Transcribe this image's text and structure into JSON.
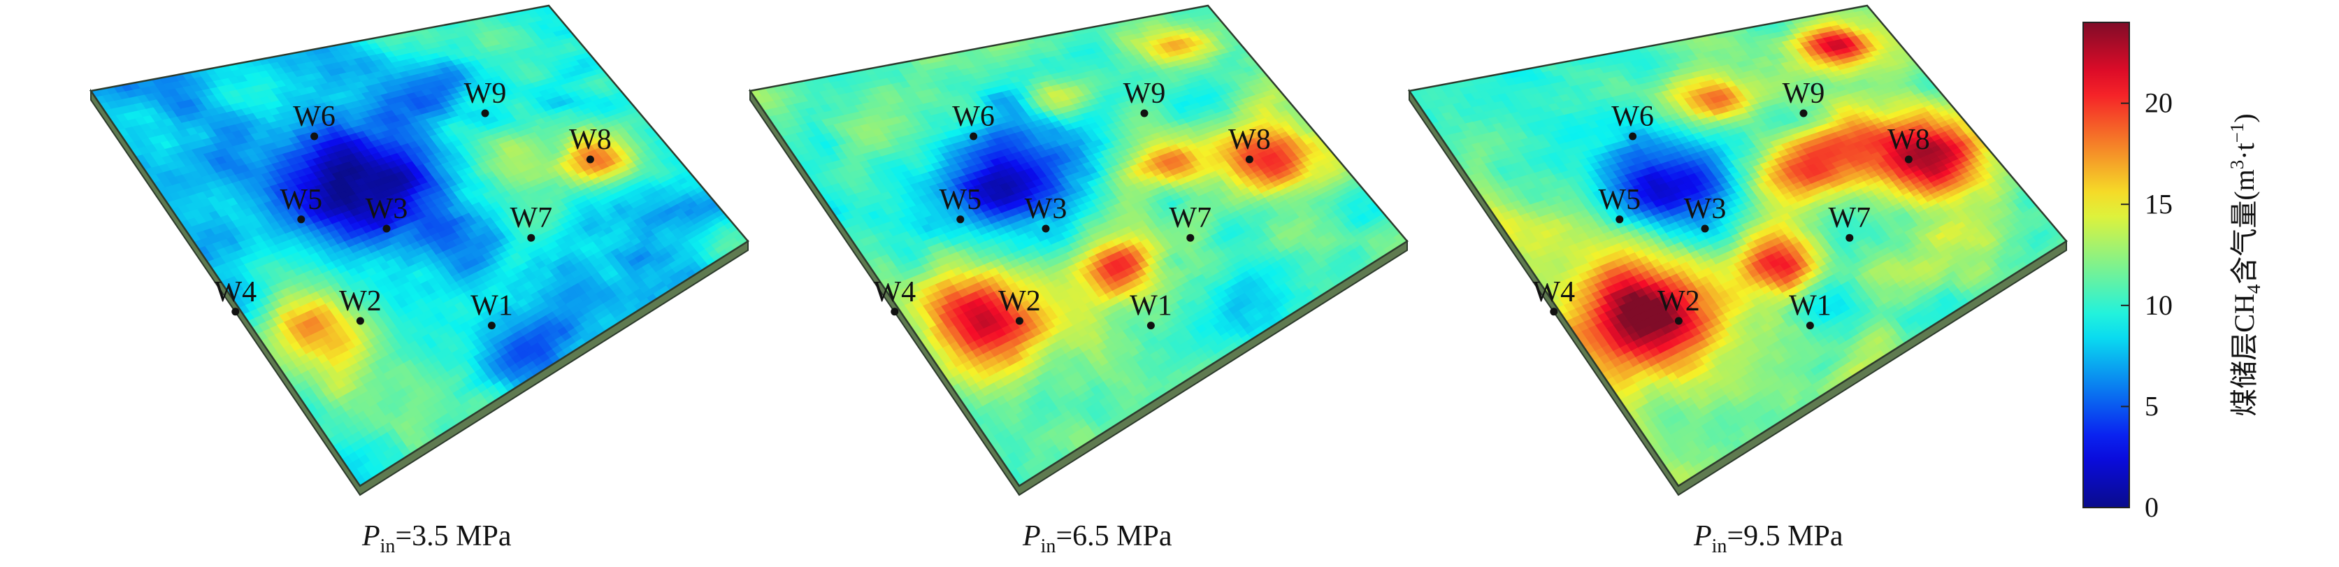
{
  "panels": [
    {
      "caption": {
        "symbol": "P",
        "subscript": "in",
        "value": "=3.5 MPa"
      },
      "wells": [
        {
          "label": "W6",
          "u": 0.34,
          "v": 0.25
        },
        {
          "label": "W9",
          "u": 0.6,
          "v": 0.2
        },
        {
          "label": "W8",
          "u": 0.76,
          "v": 0.3
        },
        {
          "label": "W5",
          "u": 0.32,
          "v": 0.43
        },
        {
          "label": "W3",
          "u": 0.45,
          "v": 0.45
        },
        {
          "label": "W7",
          "u": 0.67,
          "v": 0.47
        },
        {
          "label": "W4",
          "u": 0.22,
          "v": 0.63
        },
        {
          "label": "W2",
          "u": 0.41,
          "v": 0.65
        },
        {
          "label": "W1",
          "u": 0.61,
          "v": 0.66
        }
      ],
      "features": [
        {
          "u": 0.4,
          "v": 0.38,
          "su": 0.14,
          "sv": 0.12,
          "amp": -9
        },
        {
          "u": 0.12,
          "v": 0.66,
          "su": 0.07,
          "sv": 0.1,
          "amp": 6
        },
        {
          "u": 0.86,
          "v": 0.56,
          "su": 0.05,
          "sv": 0.07,
          "amp": 8
        },
        {
          "u": 0.48,
          "v": 0.9,
          "su": 0.09,
          "sv": 0.07,
          "amp": -5
        },
        {
          "u": 0.58,
          "v": 0.2,
          "su": 0.1,
          "sv": 0.07,
          "amp": -2
        },
        {
          "u": 0.7,
          "v": 0.46,
          "su": 0.06,
          "sv": 0.06,
          "amp": 3
        }
      ],
      "base_value": 9.5
    },
    {
      "caption": {
        "symbol": "P",
        "subscript": "in",
        "value": "=6.5 MPa"
      },
      "wells": [
        {
          "label": "W6",
          "u": 0.34,
          "v": 0.25
        },
        {
          "label": "W9",
          "u": 0.6,
          "v": 0.2
        },
        {
          "label": "W8",
          "u": 0.76,
          "v": 0.3
        },
        {
          "label": "W5",
          "u": 0.32,
          "v": 0.43
        },
        {
          "label": "W3",
          "u": 0.45,
          "v": 0.45
        },
        {
          "label": "W7",
          "u": 0.67,
          "v": 0.47
        },
        {
          "label": "W4",
          "u": 0.22,
          "v": 0.63
        },
        {
          "label": "W2",
          "u": 0.41,
          "v": 0.65
        },
        {
          "label": "W1",
          "u": 0.61,
          "v": 0.66
        }
      ],
      "features": [
        {
          "u": 0.4,
          "v": 0.38,
          "su": 0.13,
          "sv": 0.11,
          "amp": -9
        },
        {
          "u": 0.14,
          "v": 0.64,
          "su": 0.09,
          "sv": 0.1,
          "amp": 10
        },
        {
          "u": 0.87,
          "v": 0.55,
          "su": 0.07,
          "sv": 0.09,
          "amp": 11
        },
        {
          "u": 0.46,
          "v": 0.67,
          "su": 0.05,
          "sv": 0.05,
          "amp": 9
        },
        {
          "u": 0.67,
          "v": 0.46,
          "su": 0.08,
          "sv": 0.06,
          "amp": 8
        },
        {
          "u": 0.58,
          "v": 0.19,
          "su": 0.05,
          "sv": 0.04,
          "amp": 6
        },
        {
          "u": 0.88,
          "v": 0.12,
          "su": 0.05,
          "sv": 0.05,
          "amp": 7
        },
        {
          "u": 0.5,
          "v": 0.9,
          "su": 0.08,
          "sv": 0.06,
          "amp": -3
        }
      ],
      "base_value": 11
    },
    {
      "caption": {
        "symbol": "P",
        "subscript": "in",
        "value": "=9.5 MPa"
      },
      "wells": [
        {
          "label": "W6",
          "u": 0.34,
          "v": 0.25
        },
        {
          "label": "W9",
          "u": 0.6,
          "v": 0.2
        },
        {
          "label": "W8",
          "u": 0.76,
          "v": 0.3
        },
        {
          "label": "W5",
          "u": 0.32,
          "v": 0.43
        },
        {
          "label": "W3",
          "u": 0.45,
          "v": 0.45
        },
        {
          "label": "W7",
          "u": 0.67,
          "v": 0.47
        },
        {
          "label": "W4",
          "u": 0.22,
          "v": 0.63
        },
        {
          "label": "W2",
          "u": 0.41,
          "v": 0.65
        },
        {
          "label": "W1",
          "u": 0.61,
          "v": 0.66
        }
      ],
      "features": [
        {
          "u": 0.4,
          "v": 0.38,
          "su": 0.12,
          "sv": 0.1,
          "amp": -9
        },
        {
          "u": 0.15,
          "v": 0.62,
          "su": 0.11,
          "sv": 0.12,
          "amp": 12
        },
        {
          "u": 0.88,
          "v": 0.55,
          "su": 0.08,
          "sv": 0.1,
          "amp": 13
        },
        {
          "u": 0.47,
          "v": 0.66,
          "su": 0.06,
          "sv": 0.06,
          "amp": 11
        },
        {
          "u": 0.67,
          "v": 0.45,
          "su": 0.1,
          "sv": 0.07,
          "amp": 10
        },
        {
          "u": 0.58,
          "v": 0.19,
          "su": 0.06,
          "sv": 0.05,
          "amp": 8
        },
        {
          "u": 0.88,
          "v": 0.12,
          "su": 0.05,
          "sv": 0.05,
          "amp": 9
        },
        {
          "u": 0.52,
          "v": 0.88,
          "su": 0.07,
          "sv": 0.06,
          "amp": -1
        }
      ],
      "base_value": 12
    }
  ],
  "colorbar": {
    "title_prefix": "煤储层CH",
    "title_subscript": "4",
    "title_mid": "含气量(m",
    "title_sup1": "3",
    "title_sep": "·t",
    "title_sup2": "−1",
    "title_suffix": ")",
    "min": 0,
    "max": 24,
    "ticks": [
      {
        "value": 0,
        "label": "0"
      },
      {
        "value": 5,
        "label": "5"
      },
      {
        "value": 10,
        "label": "10"
      },
      {
        "value": 15,
        "label": "15"
      },
      {
        "value": 20,
        "label": "20"
      }
    ],
    "colormap": "jet"
  },
  "colors": {
    "well_marker": "#111111",
    "surface_edge": "#2c3a2c",
    "surface_side": "#5f7a50"
  }
}
